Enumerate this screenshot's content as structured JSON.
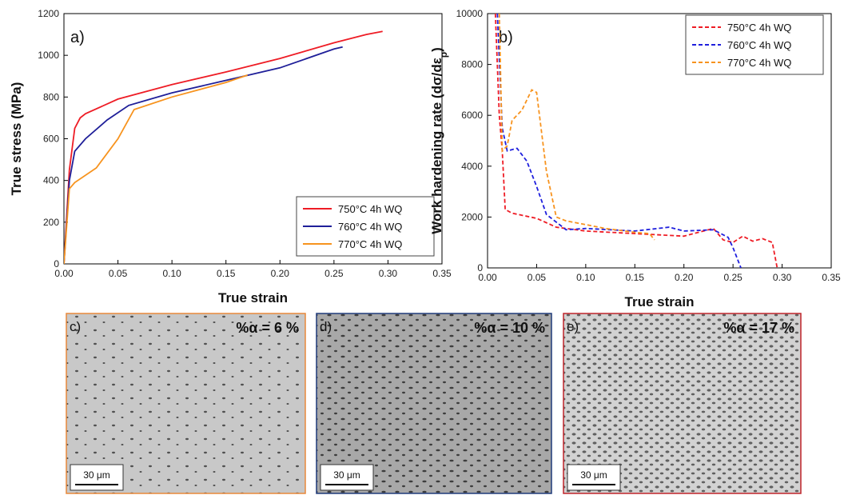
{
  "chart_data": [
    {
      "type": "line",
      "panel_label": "a)",
      "xlabel": "True strain",
      "ylabel": "True stress (MPa)",
      "xlim": [
        0,
        0.35
      ],
      "ylim": [
        0,
        1200
      ],
      "xticks": [
        {
          "value": 0,
          "label": "0.00"
        },
        {
          "value": 0.05,
          "label": "0.05"
        },
        {
          "value": 0.1,
          "label": "0.10"
        },
        {
          "value": 0.15,
          "label": "0.15"
        },
        {
          "value": 0.2,
          "label": "0.20"
        },
        {
          "value": 0.25,
          "label": "0.25"
        },
        {
          "value": 0.3,
          "label": "0.30"
        },
        {
          "value": 0.35,
          "label": "0.35"
        }
      ],
      "yticks": [
        0,
        200,
        400,
        600,
        800,
        1000,
        1200
      ],
      "legend": "lower right",
      "dashed": false,
      "series": [
        {
          "name": "750°C 4h WQ",
          "color": "#ee1c25",
          "x": [
            0,
            0.005,
            0.01,
            0.015,
            0.02,
            0.05,
            0.1,
            0.15,
            0.2,
            0.25,
            0.28,
            0.295
          ],
          "values": [
            0,
            450,
            650,
            700,
            720,
            790,
            860,
            920,
            985,
            1060,
            1100,
            1115
          ]
        },
        {
          "name": "760°C 4h WQ",
          "color": "#1f1f99",
          "x": [
            0,
            0.005,
            0.01,
            0.02,
            0.04,
            0.06,
            0.1,
            0.15,
            0.2,
            0.25,
            0.258
          ],
          "values": [
            0,
            400,
            540,
            600,
            690,
            760,
            820,
            880,
            940,
            1030,
            1040
          ]
        },
        {
          "name": "770°C 4h WQ",
          "color": "#f7931e",
          "x": [
            0,
            0.005,
            0.01,
            0.03,
            0.05,
            0.065,
            0.1,
            0.15,
            0.17
          ],
          "values": [
            0,
            360,
            390,
            460,
            600,
            740,
            800,
            870,
            905
          ]
        }
      ]
    },
    {
      "type": "line",
      "panel_label": "b)",
      "xlabel": "True strain",
      "ylabel": "Work hardening rate (dσ/dε",
      "ylabel_sub": "p",
      "ylabel_end": ")",
      "xlim": [
        0,
        0.35
      ],
      "ylim": [
        0,
        10000
      ],
      "xticks": [
        {
          "value": 0,
          "label": "0.00"
        },
        {
          "value": 0.05,
          "label": "0.05"
        },
        {
          "value": 0.1,
          "label": "0.10"
        },
        {
          "value": 0.15,
          "label": "0.15"
        },
        {
          "value": 0.2,
          "label": "0.20"
        },
        {
          "value": 0.25,
          "label": "0.25"
        },
        {
          "value": 0.3,
          "label": "0.30"
        },
        {
          "value": 0.35,
          "label": "0.35"
        }
      ],
      "yticks": [
        0,
        2000,
        4000,
        6000,
        8000,
        10000
      ],
      "legend": "upper right",
      "dashed": true,
      "series": [
        {
          "name": "750°C 4h WQ",
          "color": "#ee1c25",
          "x": [
            0.008,
            0.012,
            0.015,
            0.018,
            0.025,
            0.05,
            0.07,
            0.1,
            0.15,
            0.2,
            0.23,
            0.24,
            0.25,
            0.26,
            0.27,
            0.28,
            0.29,
            0.295
          ],
          "values": [
            10000,
            6000,
            4600,
            2300,
            2150,
            1950,
            1600,
            1450,
            1350,
            1250,
            1550,
            1100,
            1000,
            1250,
            1050,
            1150,
            1000,
            0
          ]
        },
        {
          "name": "760°C 4h WQ",
          "color": "#1f1fdd",
          "x": [
            0.01,
            0.015,
            0.02,
            0.03,
            0.04,
            0.05,
            0.06,
            0.08,
            0.1,
            0.15,
            0.185,
            0.2,
            0.23,
            0.245,
            0.25,
            0.258
          ],
          "values": [
            10000,
            5500,
            4600,
            4700,
            4200,
            3200,
            2100,
            1500,
            1550,
            1450,
            1600,
            1450,
            1500,
            1200,
            800,
            0
          ]
        },
        {
          "name": "770°C 4h WQ",
          "color": "#f7931e",
          "x": [
            0.012,
            0.015,
            0.02,
            0.025,
            0.035,
            0.045,
            0.05,
            0.06,
            0.07,
            0.08,
            0.1,
            0.12,
            0.15,
            0.165,
            0.17
          ],
          "values": [
            10000,
            4600,
            4800,
            5800,
            6200,
            7000,
            6900,
            3800,
            2000,
            1850,
            1700,
            1550,
            1400,
            1350,
            1100
          ]
        }
      ]
    }
  ],
  "micrographs": [
    {
      "label": "c)",
      "fraction": "%α = 6 %",
      "scale": "30 μm"
    },
    {
      "label": "d)",
      "fraction": "%α = 10 %",
      "scale": "30 μm"
    },
    {
      "label": "e)",
      "fraction": "%α = 17 %",
      "scale": "30 μm"
    }
  ]
}
